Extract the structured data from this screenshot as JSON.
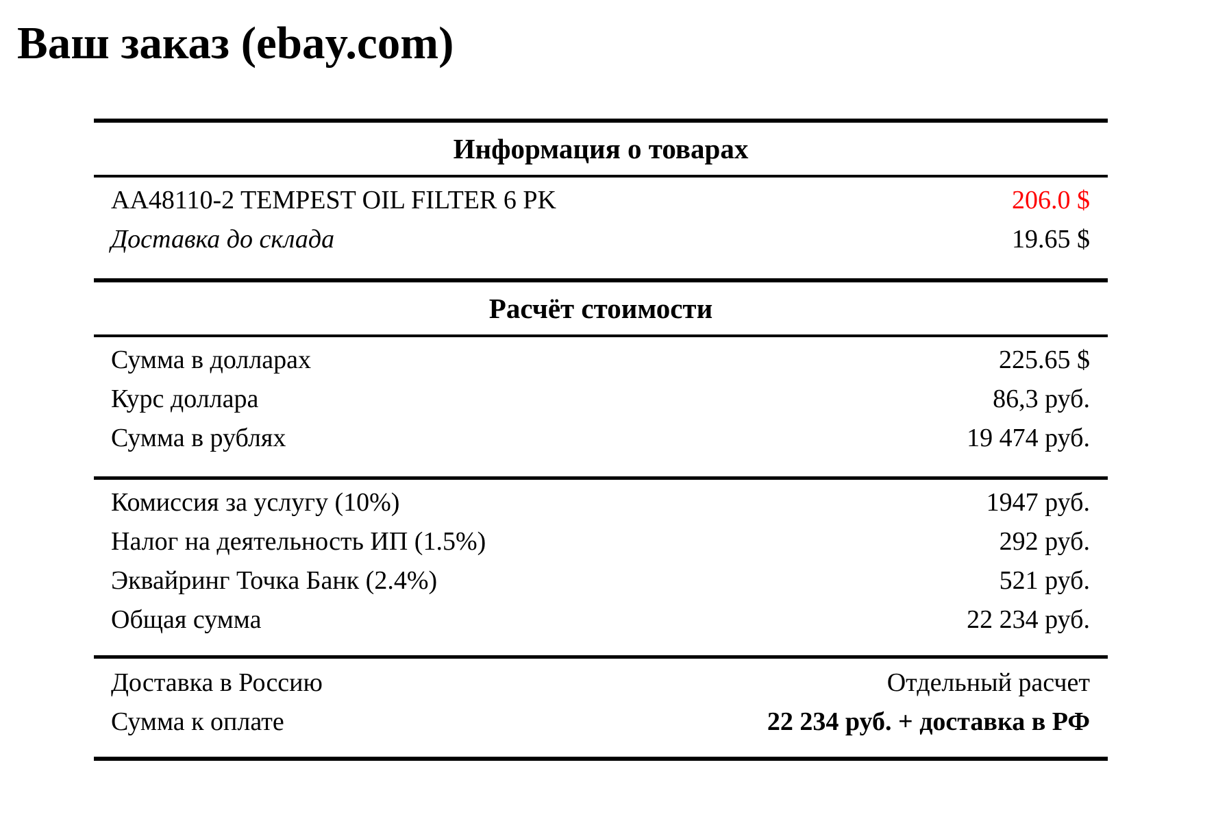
{
  "title": "Ваш заказ (ebay.com)",
  "colors": {
    "highlight_red": "#ff0000",
    "text": "#000000",
    "background": "#ffffff",
    "rule": "#000000"
  },
  "sections": {
    "goods": {
      "header": "Информация о товарах",
      "rows": [
        {
          "label": "AA48110-2 TEMPEST OIL FILTER 6 PK",
          "value": "206.0 $"
        },
        {
          "label": "Доставка до склада",
          "value": "19.65 $"
        }
      ]
    },
    "calc": {
      "header": "Расчёт стоимости",
      "subtotal_rows": [
        {
          "label": "Сумма в долларах",
          "value": "225.65 $"
        },
        {
          "label": "Курс доллара",
          "value": "86,3 руб."
        },
        {
          "label": "Сумма в рублях",
          "value": "19 474 руб."
        }
      ],
      "fees_rows": [
        {
          "label": "Комиссия за услугу (10%)",
          "value": "1947 руб."
        },
        {
          "label": "Налог на деятельность ИП (1.5%)",
          "value": "292 руб."
        },
        {
          "label": "Эквайринг Точка Банк (2.4%)",
          "value": "521 руб."
        },
        {
          "label": "Общая сумма",
          "value": "22 234 руб."
        }
      ],
      "total_rows": [
        {
          "label": "Доставка в Россию",
          "value": "Отдельный расчет"
        },
        {
          "label": "Сумма к оплате",
          "value": "22 234 руб. + доставка в РФ"
        }
      ]
    }
  }
}
